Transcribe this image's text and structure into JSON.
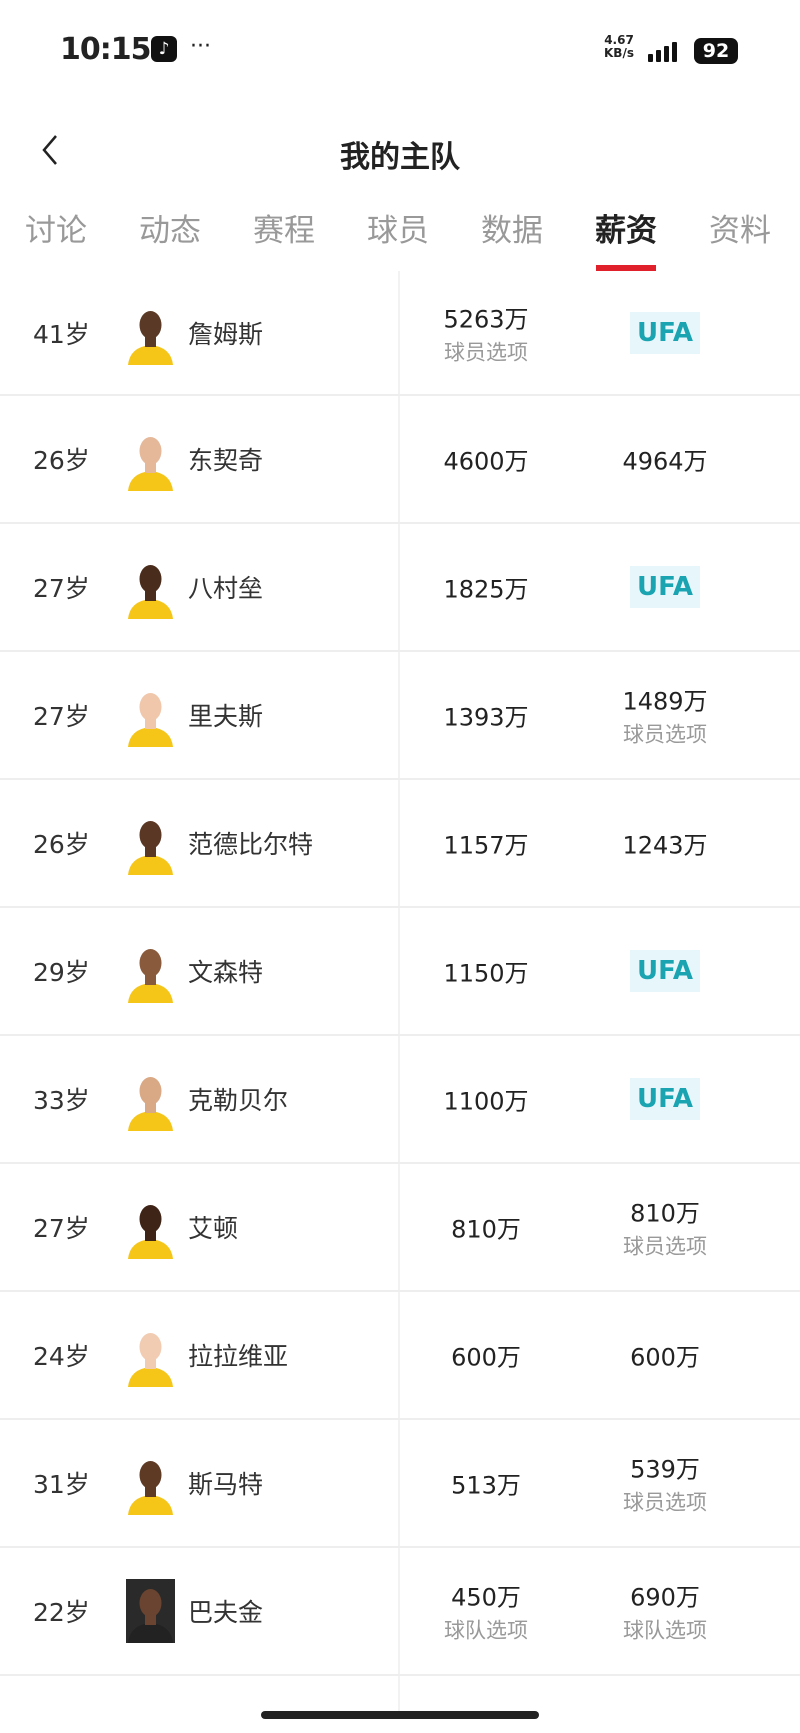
{
  "status_bar": {
    "time": "10:15",
    "app_icon": "tiktok-icon",
    "more": "···",
    "speed_value": "4.67",
    "speed_unit": "KB/s",
    "battery": "92"
  },
  "header": {
    "title": "我的主队",
    "back_icon": "chevron-left-icon"
  },
  "tabs": [
    {
      "label": "讨论"
    },
    {
      "label": "动态"
    },
    {
      "label": "赛程"
    },
    {
      "label": "球员"
    },
    {
      "label": "数据"
    },
    {
      "label": "薪资",
      "active": true
    },
    {
      "label": "资料"
    }
  ],
  "colors": {
    "accent": "#e0202a",
    "ufa_text": "#1aa3b0",
    "ufa_bg": "#e6f6fb",
    "jersey": "#f5c518"
  },
  "players": [
    {
      "age": "41岁",
      "name": "詹姆斯",
      "skin": "#5a3a26",
      "jersey": "#f5c518",
      "salary": "5263万",
      "salary_note": "球员选项",
      "next": "UFA",
      "next_note": ""
    },
    {
      "age": "26岁",
      "name": "东契奇",
      "skin": "#e5b89a",
      "jersey": "#f5c518",
      "salary": "4600万",
      "salary_note": "",
      "next": "4964万",
      "next_note": ""
    },
    {
      "age": "27岁",
      "name": "八村垒",
      "skin": "#4a2c1c",
      "jersey": "#f5c518",
      "salary": "1825万",
      "salary_note": "",
      "next": "UFA",
      "next_note": ""
    },
    {
      "age": "27岁",
      "name": "里夫斯",
      "skin": "#f0c7ab",
      "jersey": "#f5c518",
      "salary": "1393万",
      "salary_note": "",
      "next": "1489万",
      "next_note": "球员选项"
    },
    {
      "age": "26岁",
      "name": "范德比尔特",
      "skin": "#5a3624",
      "jersey": "#f5c518",
      "salary": "1157万",
      "salary_note": "",
      "next": "1243万",
      "next_note": ""
    },
    {
      "age": "29岁",
      "name": "文森特",
      "skin": "#8a5a3c",
      "jersey": "#f5c518",
      "salary": "1150万",
      "salary_note": "",
      "next": "UFA",
      "next_note": ""
    },
    {
      "age": "33岁",
      "name": "克勒贝尔",
      "skin": "#d9a884",
      "jersey": "#f5c518",
      "salary": "1100万",
      "salary_note": "",
      "next": "UFA",
      "next_note": ""
    },
    {
      "age": "27岁",
      "name": "艾顿",
      "skin": "#3e2416",
      "jersey": "#f5c518",
      "salary": "810万",
      "salary_note": "",
      "next": "810万",
      "next_note": "球员选项"
    },
    {
      "age": "24岁",
      "name": "拉拉维亚",
      "skin": "#f2ccb2",
      "jersey": "#f5c518",
      "salary": "600万",
      "salary_note": "",
      "next": "600万",
      "next_note": ""
    },
    {
      "age": "31岁",
      "name": "斯马特",
      "skin": "#5e3a24",
      "jersey": "#f5c518",
      "salary": "513万",
      "salary_note": "",
      "next": "539万",
      "next_note": "球员选项"
    },
    {
      "age": "22岁",
      "name": "巴夫金",
      "skin": "#6a4430",
      "jersey": "#222222",
      "salary": "450万",
      "salary_note": "球队选项",
      "next": "690万",
      "next_note": "球队选项"
    }
  ]
}
